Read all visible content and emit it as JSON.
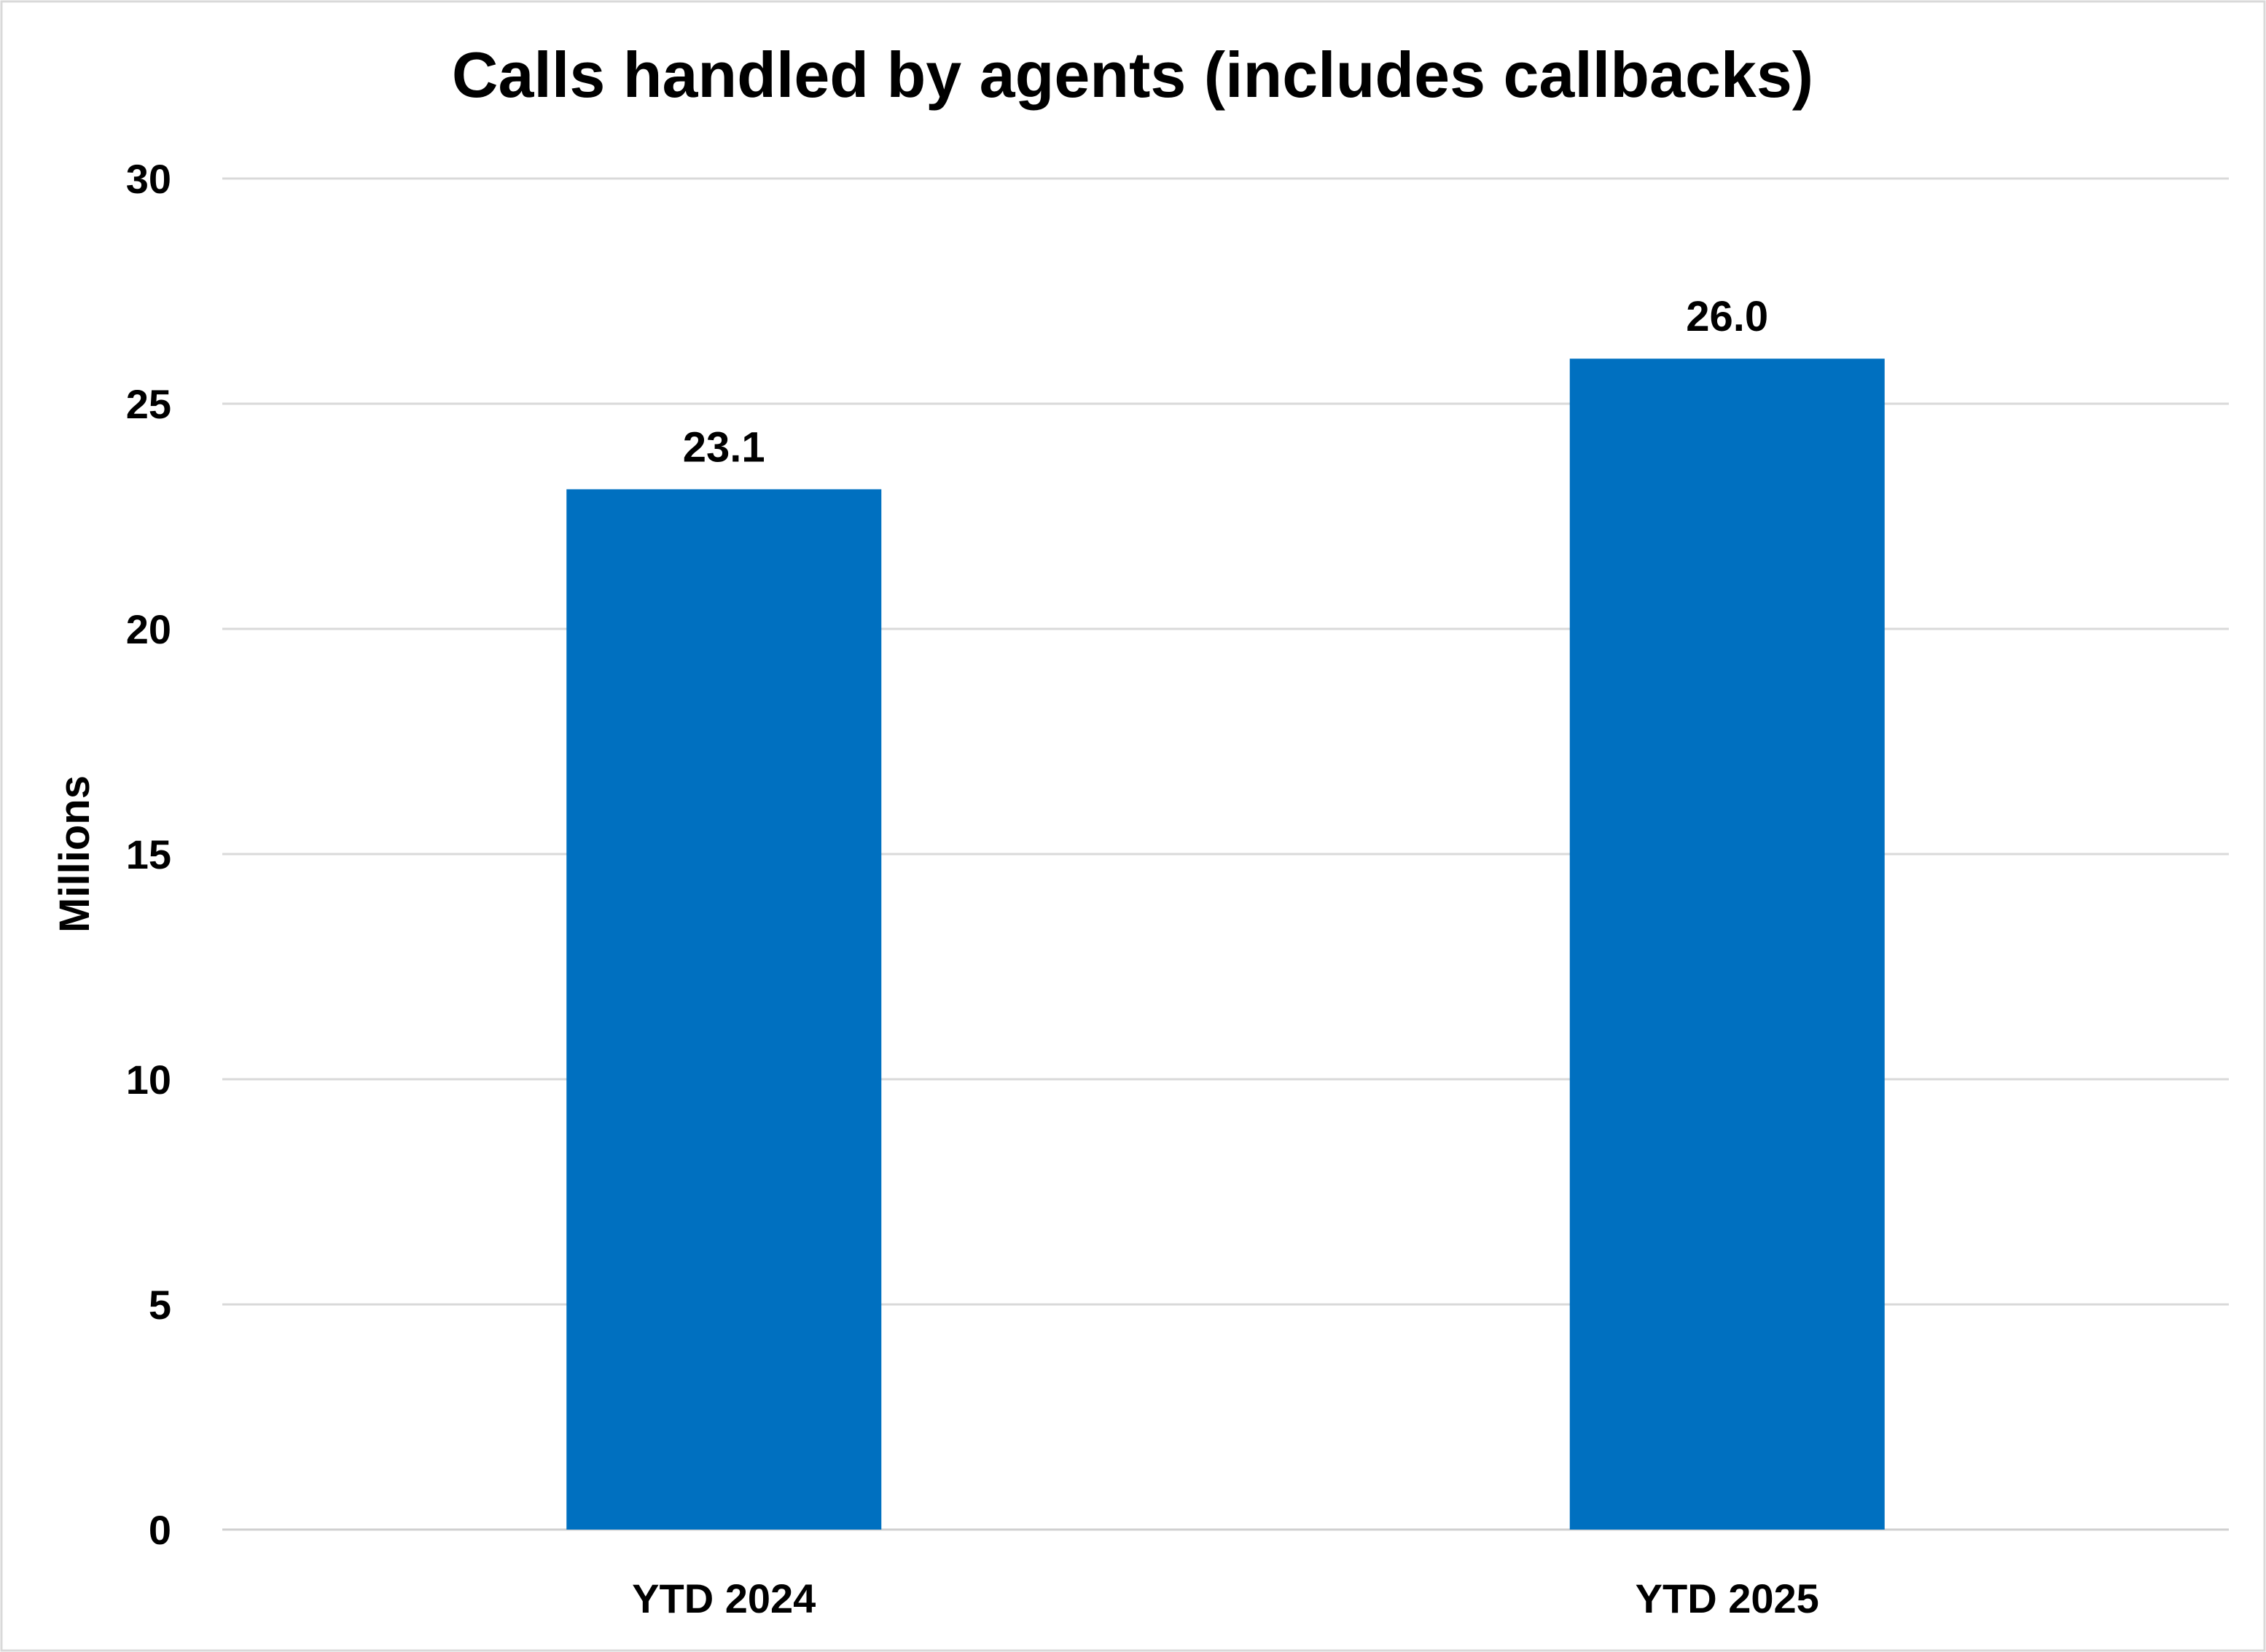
{
  "chart_data": {
    "type": "bar",
    "title": "Calls handled by agents (includes callbacks)",
    "ylabel": "Millions",
    "xlabel": "",
    "categories": [
      "YTD 2024",
      "YTD 2025"
    ],
    "values": [
      23.1,
      26.0
    ],
    "data_labels": [
      "23.1",
      "26.0"
    ],
    "ylim": [
      0,
      30
    ],
    "yticks": [
      0,
      5,
      10,
      15,
      20,
      25,
      30
    ],
    "grid": true,
    "legend": "none",
    "bar_color": "#0070C0"
  }
}
